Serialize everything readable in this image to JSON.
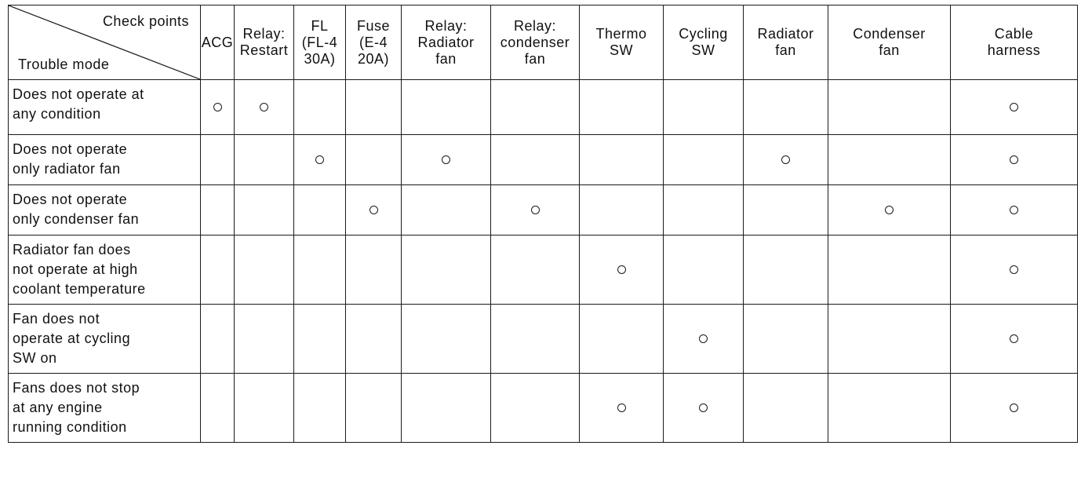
{
  "corner": {
    "columns_label": "Check points",
    "rows_label": "Trouble mode"
  },
  "columns": [
    [
      "ACG"
    ],
    [
      "Relay:",
      "Restart"
    ],
    [
      "FL",
      "(FL-4",
      "30A)"
    ],
    [
      "Fuse",
      "(E-4",
      "20A)"
    ],
    [
      "Relay:",
      "Radiator",
      "fan"
    ],
    [
      "Relay:",
      "condenser",
      "fan"
    ],
    [
      "Thermo",
      "SW"
    ],
    [
      "Cycling",
      "SW"
    ],
    [
      "Radiator",
      "fan"
    ],
    [
      "Condenser",
      "fan"
    ],
    [
      "Cable",
      "harness"
    ]
  ],
  "rows": [
    {
      "mode": [
        "Does not operate at",
        "any condition"
      ],
      "marks": [
        1,
        1,
        0,
        0,
        0,
        0,
        0,
        0,
        0,
        0,
        1
      ]
    },
    {
      "mode": [
        "Does not operate",
        "only radiator fan"
      ],
      "marks": [
        0,
        0,
        1,
        0,
        1,
        0,
        0,
        0,
        1,
        0,
        1
      ]
    },
    {
      "mode": [
        "Does not operate",
        "only condenser fan"
      ],
      "marks": [
        0,
        0,
        0,
        1,
        0,
        1,
        0,
        0,
        0,
        1,
        1
      ]
    },
    {
      "mode": [
        "Radiator fan does",
        "not operate at high",
        "coolant temperature"
      ],
      "marks": [
        0,
        0,
        0,
        0,
        0,
        0,
        1,
        0,
        0,
        0,
        1
      ]
    },
    {
      "mode": [
        "Fan does not",
        "operate at cycling",
        "SW on"
      ],
      "marks": [
        0,
        0,
        0,
        0,
        0,
        0,
        0,
        1,
        0,
        0,
        1
      ]
    },
    {
      "mode": [
        "Fans does not stop",
        "at any engine",
        "running condition"
      ],
      "marks": [
        0,
        0,
        0,
        0,
        0,
        0,
        1,
        1,
        0,
        0,
        1
      ]
    }
  ]
}
